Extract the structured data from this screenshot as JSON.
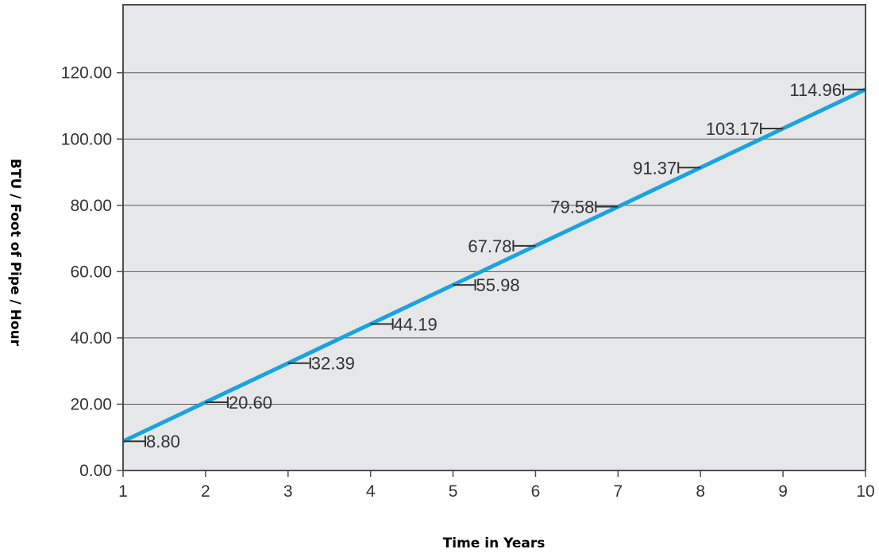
{
  "chart_data": {
    "type": "line",
    "title": "",
    "xlabel": "Time in Years",
    "ylabel": "BTU / Foot of Pipe / Hour",
    "xlim": [
      1,
      10
    ],
    "ylim": [
      0,
      140
    ],
    "x_ticks": [
      1,
      2,
      3,
      4,
      5,
      6,
      7,
      8,
      9,
      10
    ],
    "x_tick_labels": [
      "1",
      "2",
      "3",
      "4",
      "5",
      "6",
      "7",
      "8",
      "9",
      "10"
    ],
    "y_ticks": [
      0,
      20,
      40,
      60,
      80,
      100,
      120
    ],
    "y_tick_labels": [
      "0.00",
      "20.00",
      "40.00",
      "60.00",
      "80.00",
      "100.00",
      "120.00"
    ],
    "grid": "horizontal",
    "line_color": "#1aa3e0",
    "plot_background": "#e6e7e8",
    "series": [
      {
        "x": [
          1,
          2,
          3,
          4,
          5,
          6,
          7,
          8,
          9,
          10
        ],
        "values": [
          8.8,
          20.6,
          32.39,
          44.19,
          55.98,
          67.78,
          79.58,
          91.37,
          103.17,
          114.96
        ]
      }
    ],
    "annotations": [
      {
        "text": "8.80",
        "x": 1,
        "y": 8.8,
        "side": "right"
      },
      {
        "text": "20.60",
        "x": 2,
        "y": 20.6,
        "side": "right"
      },
      {
        "text": "32.39",
        "x": 3,
        "y": 32.39,
        "side": "right"
      },
      {
        "text": "44.19",
        "x": 4,
        "y": 44.19,
        "side": "right"
      },
      {
        "text": "55.98",
        "x": 5,
        "y": 55.98,
        "side": "right"
      },
      {
        "text": "67.78",
        "x": 6,
        "y": 67.78,
        "side": "left"
      },
      {
        "text": "79.58",
        "x": 7,
        "y": 79.58,
        "side": "left"
      },
      {
        "text": "91.37",
        "x": 8,
        "y": 91.37,
        "side": "left"
      },
      {
        "text": "103.17",
        "x": 9,
        "y": 103.17,
        "side": "left"
      },
      {
        "text": "114.96",
        "x": 10,
        "y": 114.96,
        "side": "left"
      }
    ]
  }
}
